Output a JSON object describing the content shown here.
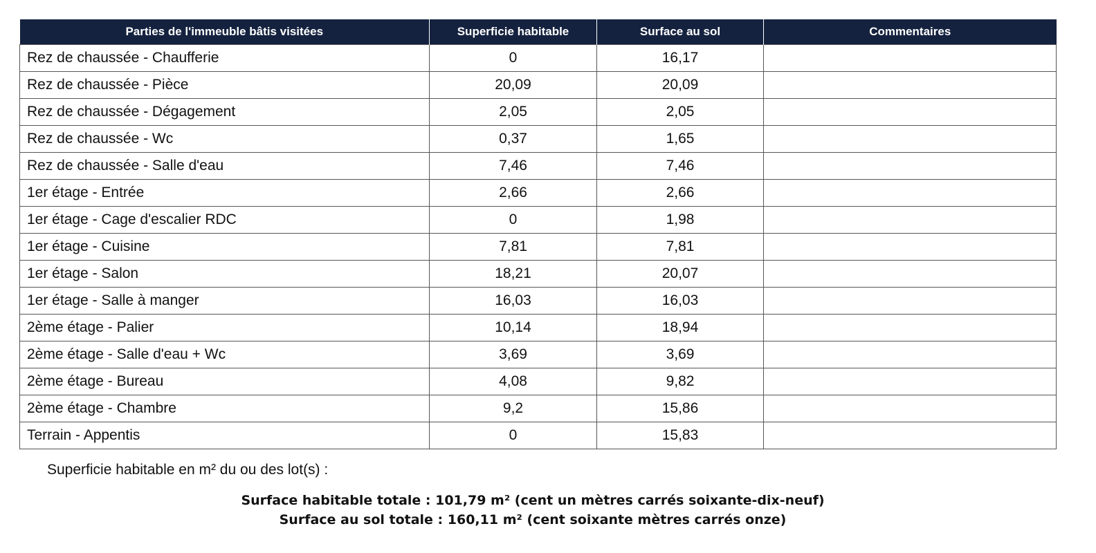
{
  "table": {
    "headers": [
      "Parties de l'immeuble bâtis visitées",
      "Superficie habitable",
      "Surface au sol",
      "Commentaires"
    ],
    "rows": [
      [
        "Rez de chaussée - Chaufferie",
        "0",
        "16,17",
        ""
      ],
      [
        "Rez de chaussée - Pièce",
        "20,09",
        "20,09",
        ""
      ],
      [
        "Rez de chaussée - Dégagement",
        "2,05",
        "2,05",
        ""
      ],
      [
        "Rez de chaussée - Wc",
        "0,37",
        "1,65",
        ""
      ],
      [
        "Rez de chaussée - Salle d'eau",
        "7,46",
        "7,46",
        ""
      ],
      [
        "1er étage - Entrée",
        "2,66",
        "2,66",
        ""
      ],
      [
        "1er étage - Cage d'escalier RDC",
        "0",
        "1,98",
        ""
      ],
      [
        "1er étage - Cuisine",
        "7,81",
        "7,81",
        ""
      ],
      [
        "1er étage - Salon",
        "18,21",
        "20,07",
        ""
      ],
      [
        "1er étage - Salle à manger",
        "16,03",
        "16,03",
        ""
      ],
      [
        "2ème étage - Palier",
        "10,14",
        "18,94",
        ""
      ],
      [
        "2ème étage - Salle d'eau + Wc",
        "3,69",
        "3,69",
        ""
      ],
      [
        "2ème étage - Bureau",
        "4,08",
        "9,82",
        ""
      ],
      [
        "2ème étage - Chambre",
        "9,2",
        "15,86",
        ""
      ],
      [
        "Terrain - Appentis",
        "0",
        "15,83",
        ""
      ]
    ]
  },
  "footer": {
    "note": "Superficie habitable en m² du ou des lot(s) :",
    "total_habitable": "Surface habitable totale : 101,79 m² (cent un mètres carrés soixante-dix-neuf)",
    "total_sol": "Surface au sol totale : 160,11 m² (cent soixante mètres carrés onze)"
  },
  "colors": {
    "header_bg": "#14223f"
  }
}
